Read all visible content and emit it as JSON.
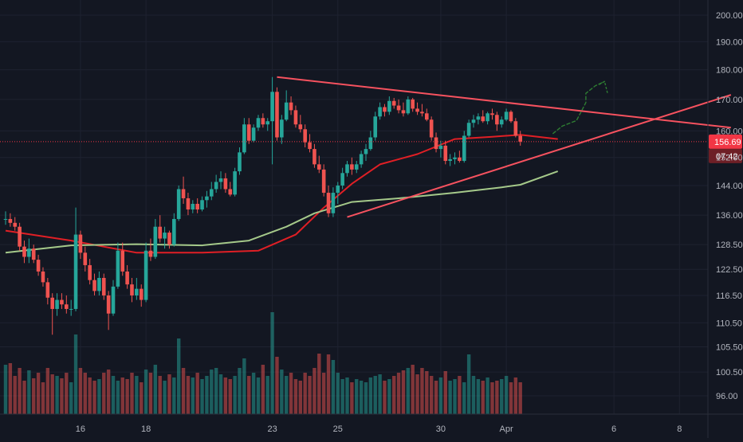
{
  "chart_data": {
    "type": "candlestick",
    "price_axis": {
      "scale": "log",
      "ticks": [
        200.0,
        190.0,
        180.0,
        170.0,
        160.0,
        152.0,
        144.0,
        136.0,
        128.5,
        122.5,
        116.5,
        110.5,
        105.5,
        100.5,
        96.0
      ],
      "labels": [
        "200.00",
        "190.00",
        "180.00",
        "170.00",
        "160.00",
        "152.00",
        "144.00",
        "136.00",
        "128.50",
        "122.50",
        "116.50",
        "110.50",
        "105.50",
        "100.50",
        "96.00"
      ]
    },
    "time_axis": {
      "ticks": [
        {
          "label": "16",
          "bar": 16
        },
        {
          "label": "18",
          "bar": 30
        },
        {
          "label": "23",
          "bar": 57
        },
        {
          "label": "25",
          "bar": 71
        },
        {
          "label": "30",
          "bar": 93
        },
        {
          "label": "Apr",
          "bar": 107
        },
        {
          "label": "6",
          "bar": 130
        },
        {
          "label": "8",
          "bar": 144
        }
      ]
    },
    "last_price": {
      "value": 156.69,
      "label": "156.69",
      "countdown": "07:42",
      "color": "#f23645"
    },
    "colors": {
      "up": "#26a69a",
      "down": "#ef5350",
      "ma_fast": "#e01f25",
      "ma_slow": "#a5c98a",
      "trendline": "#f7525f",
      "annotation": "#2e7d32",
      "background": "#131722",
      "grid": "#1e2230",
      "axis_text": "#b2b5be"
    },
    "moving_averages": [
      {
        "id": "ma-fast",
        "points": [
          [
            0,
            132
          ],
          [
            14,
            129.5
          ],
          [
            28,
            126.5
          ],
          [
            42,
            126.5
          ],
          [
            54,
            127
          ],
          [
            62,
            131
          ],
          [
            68,
            138
          ],
          [
            74,
            144.5
          ],
          [
            80,
            150
          ],
          [
            88,
            153
          ],
          [
            96,
            157.5
          ],
          [
            104,
            158.2
          ],
          [
            110,
            158.8
          ],
          [
            118,
            157.5
          ]
        ]
      },
      {
        "id": "ma-slow",
        "points": [
          [
            0,
            126.5
          ],
          [
            14,
            128.3
          ],
          [
            28,
            128.6
          ],
          [
            42,
            128.3
          ],
          [
            52,
            129.5
          ],
          [
            60,
            133
          ],
          [
            66,
            136.5
          ],
          [
            74,
            139.5
          ],
          [
            84,
            140.5
          ],
          [
            96,
            142
          ],
          [
            106,
            143.5
          ],
          [
            110,
            144.2
          ],
          [
            118,
            148
          ]
        ]
      }
    ],
    "trendlines": [
      {
        "id": "upper-trendline",
        "from": [
          58,
          177.5
        ],
        "to": [
          155,
          161
        ]
      },
      {
        "id": "lower-trendline",
        "from": [
          73,
          135.5
        ],
        "to": [
          155,
          171.5
        ]
      }
    ],
    "annotation_path": {
      "id": "bullish-arrow",
      "points": [
        [
          117,
          159.2
        ],
        [
          119,
          161.5
        ],
        [
          122,
          163.2
        ],
        [
          123,
          166
        ],
        [
          124,
          169
        ],
        [
          124,
          172
        ],
        [
          126,
          174.5
        ],
        [
          128,
          176
        ]
      ]
    },
    "candles": [
      [
        0,
        135,
        137,
        133.5,
        135
      ],
      [
        1,
        135,
        136.5,
        133,
        134
      ],
      [
        2,
        134,
        135.5,
        132,
        133
      ],
      [
        3,
        133,
        134,
        127,
        128
      ],
      [
        4,
        128,
        129.5,
        124,
        125.5
      ],
      [
        5,
        125.5,
        130,
        124,
        127.5
      ],
      [
        6,
        127.5,
        128.5,
        124,
        124.8
      ],
      [
        7,
        124.8,
        126,
        121,
        122
      ],
      [
        8,
        122,
        123,
        118.5,
        119.5
      ],
      [
        9,
        119.5,
        120.5,
        114.5,
        116
      ],
      [
        10,
        116,
        117,
        108,
        113.5
      ],
      [
        11,
        113.5,
        117,
        112,
        115.5
      ],
      [
        12,
        115.5,
        117,
        113.5,
        114.5
      ],
      [
        13,
        114.5,
        116.5,
        112.5,
        113.5
      ],
      [
        14,
        113.5,
        115.5,
        112,
        113.5
      ],
      [
        15,
        113.5,
        138,
        113,
        131
      ],
      [
        16,
        131,
        132,
        125,
        126.5
      ],
      [
        17,
        126.5,
        128,
        122,
        123.5
      ],
      [
        18,
        123.5,
        125,
        119,
        120
      ],
      [
        19,
        120,
        121.5,
        116.5,
        117.5
      ],
      [
        20,
        117.5,
        122,
        116.5,
        120.5
      ],
      [
        21,
        120.5,
        121.5,
        115.5,
        116.5
      ],
      [
        22,
        116.5,
        117.5,
        109,
        112.5
      ],
      [
        23,
        112.5,
        120,
        112,
        118.5
      ],
      [
        24,
        118.5,
        129,
        118,
        127
      ],
      [
        25,
        127,
        129,
        121,
        122
      ],
      [
        26,
        122,
        123.5,
        118,
        119
      ],
      [
        27,
        119,
        120.5,
        115,
        116.5
      ],
      [
        28,
        116.5,
        120.5,
        115.5,
        118
      ],
      [
        29,
        118,
        119,
        114,
        115.5
      ],
      [
        30,
        115.5,
        129,
        115,
        127
      ],
      [
        31,
        127,
        130,
        124.5,
        125.5
      ],
      [
        32,
        125.5,
        135,
        125,
        133
      ],
      [
        33,
        133,
        136,
        129,
        130
      ],
      [
        34,
        130,
        133,
        127.5,
        131.5
      ],
      [
        35,
        131.5,
        132,
        127.5,
        128.5
      ],
      [
        36,
        128.5,
        136.5,
        128,
        135
      ],
      [
        37,
        135,
        144,
        134.5,
        143
      ],
      [
        38,
        143,
        146.5,
        139,
        140.5
      ],
      [
        39,
        140.5,
        142,
        136,
        137.5
      ],
      [
        40,
        137.5,
        140,
        136.5,
        139
      ],
      [
        41,
        139,
        140.5,
        136.5,
        137.5
      ],
      [
        42,
        137.5,
        141,
        137,
        140
      ],
      [
        43,
        140,
        142.5,
        138,
        141
      ],
      [
        44,
        141,
        145,
        140,
        143
      ],
      [
        45,
        143,
        147,
        142,
        145
      ],
      [
        46,
        145,
        148,
        143,
        146
      ],
      [
        47,
        146,
        147.5,
        142,
        143
      ],
      [
        48,
        143,
        145,
        141,
        141.5
      ],
      [
        49,
        141.5,
        149,
        141,
        148
      ],
      [
        50,
        148,
        155,
        147,
        153.5
      ],
      [
        51,
        153.5,
        164,
        153,
        162
      ],
      [
        52,
        162,
        164,
        156,
        157
      ],
      [
        53,
        157,
        162,
        156.5,
        161
      ],
      [
        54,
        161,
        165,
        160,
        164
      ],
      [
        55,
        164,
        165.5,
        161,
        162
      ],
      [
        56,
        162,
        164,
        160,
        163
      ],
      [
        57,
        163,
        177.5,
        150,
        172.5
      ],
      [
        58,
        172.5,
        174,
        157,
        158
      ],
      [
        59,
        158,
        165,
        156,
        163.5
      ],
      [
        60,
        163.5,
        173,
        163,
        169
      ],
      [
        61,
        169,
        171,
        165,
        166.5
      ],
      [
        62,
        166.5,
        168,
        161,
        162
      ],
      [
        63,
        162,
        165,
        159.5,
        160.5
      ],
      [
        64,
        160.5,
        162,
        155,
        156.5
      ],
      [
        65,
        156.5,
        159,
        153.5,
        154.5
      ],
      [
        66,
        154.5,
        156,
        149,
        150
      ],
      [
        67,
        150,
        152.5,
        147.5,
        148.5
      ],
      [
        68,
        148.5,
        150,
        141,
        142
      ],
      [
        69,
        142,
        144,
        135.5,
        136.5
      ],
      [
        70,
        136.5,
        143.5,
        135.5,
        142
      ],
      [
        71,
        142,
        145,
        139,
        144
      ],
      [
        72,
        144,
        149,
        143,
        147.5
      ],
      [
        73,
        147.5,
        151,
        146.5,
        150
      ],
      [
        74,
        150,
        152,
        147,
        148.5
      ],
      [
        75,
        148.5,
        151,
        147.5,
        150
      ],
      [
        76,
        150,
        154,
        149,
        153
      ],
      [
        77,
        153,
        156,
        151,
        154.5
      ],
      [
        78,
        154.5,
        160,
        154,
        158
      ],
      [
        79,
        158,
        166,
        157,
        164.5
      ],
      [
        80,
        164.5,
        169,
        163.5,
        167.5
      ],
      [
        81,
        167.5,
        168.5,
        164.5,
        166
      ],
      [
        82,
        166,
        171,
        165,
        169.5
      ],
      [
        83,
        169.5,
        170.5,
        167,
        168
      ],
      [
        84,
        168,
        170,
        165.5,
        166.5
      ],
      [
        85,
        166.5,
        169,
        164.5,
        165.5
      ],
      [
        86,
        165.5,
        171,
        165,
        170
      ],
      [
        87,
        170,
        170.5,
        166,
        167
      ],
      [
        88,
        167,
        169,
        165,
        166
      ],
      [
        89,
        166,
        168.5,
        164.5,
        165.5
      ],
      [
        90,
        165.5,
        167,
        163,
        163.5
      ],
      [
        91,
        163.5,
        164.5,
        157,
        158
      ],
      [
        92,
        158,
        159.5,
        153.5,
        154.5
      ],
      [
        93,
        154.5,
        157,
        152,
        155.5
      ],
      [
        94,
        155.5,
        157,
        150,
        151
      ],
      [
        95,
        151,
        153,
        149.5,
        151.5
      ],
      [
        96,
        151.5,
        153.5,
        150,
        152
      ],
      [
        97,
        152,
        154,
        150.5,
        151
      ],
      [
        98,
        151,
        160,
        150.5,
        158.5
      ],
      [
        99,
        158.5,
        163.5,
        158,
        162.5
      ],
      [
        100,
        162.5,
        165,
        161,
        163.5
      ],
      [
        101,
        163.5,
        165.5,
        162,
        164.5
      ],
      [
        102,
        164.5,
        166.5,
        162.5,
        163
      ],
      [
        103,
        163,
        166,
        162,
        165.5
      ],
      [
        104,
        165.5,
        167,
        163.5,
        165
      ],
      [
        105,
        165,
        166,
        160,
        162
      ],
      [
        106,
        162,
        164.5,
        161,
        163.5
      ],
      [
        107,
        163.5,
        167,
        163,
        166
      ],
      [
        108,
        166,
        166.5,
        162.5,
        163
      ],
      [
        109,
        163,
        164,
        158,
        158.5
      ],
      [
        110,
        158.5,
        160,
        155.5,
        156.7
      ]
    ],
    "volume": [
      62,
      64,
      48,
      58,
      42,
      55,
      45,
      52,
      40,
      58,
      50,
      48,
      45,
      52,
      40,
      100,
      58,
      52,
      46,
      42,
      44,
      52,
      56,
      48,
      42,
      46,
      44,
      52,
      48,
      40,
      56,
      52,
      62,
      48,
      42,
      50,
      46,
      95,
      58,
      48,
      46,
      52,
      44,
      48,
      56,
      58,
      50,
      46,
      44,
      48,
      58,
      70,
      48,
      52,
      46,
      62,
      48,
      128,
      72,
      56,
      48,
      52,
      44,
      42,
      52,
      48,
      58,
      76,
      52,
      75,
      68,
      52,
      44,
      46,
      40,
      44,
      42,
      40,
      46,
      48,
      50,
      42,
      44,
      48,
      52,
      55,
      58,
      62,
      50,
      58,
      54,
      48,
      42,
      46,
      54,
      42,
      44,
      48,
      40,
      75,
      48,
      44,
      42,
      46,
      40,
      42,
      44,
      48,
      40,
      46,
      40
    ]
  }
}
